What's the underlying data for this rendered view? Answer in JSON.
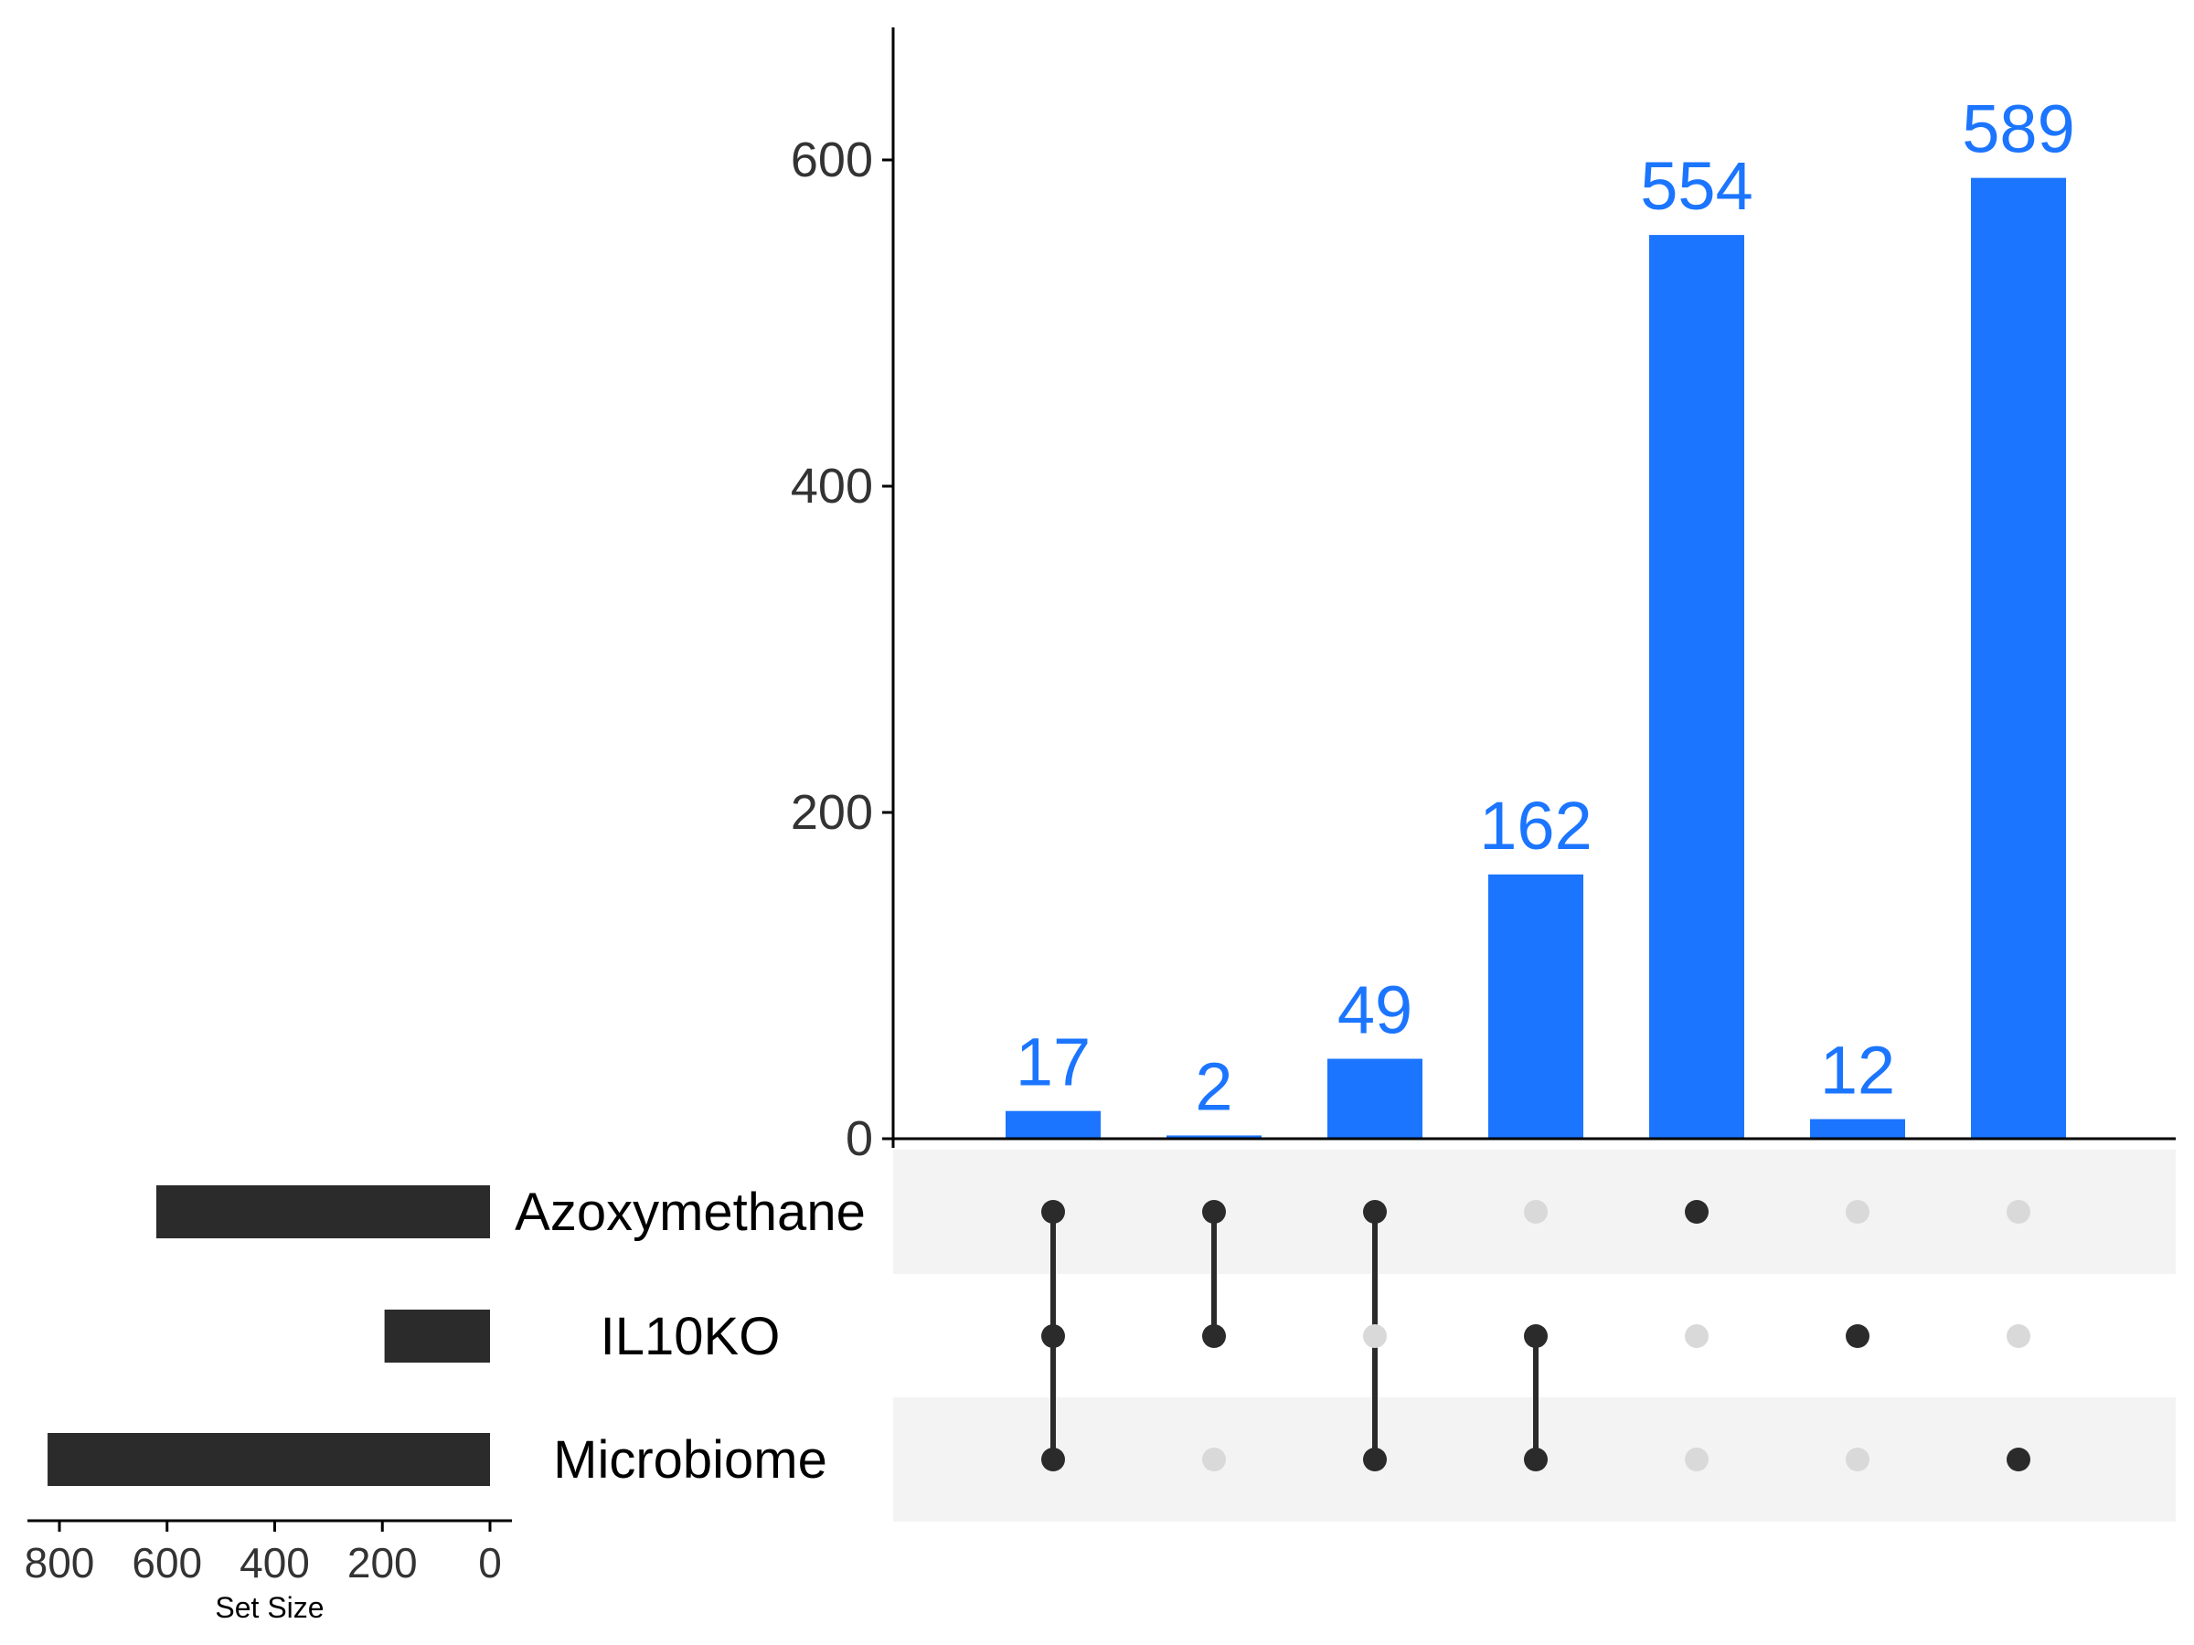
{
  "chart_data": {
    "type": "upset",
    "colors": {
      "bar": "#1b75ff",
      "dark": "#2b2b2b",
      "inactive": "#d9d9d9",
      "stripe": "#f3f3f3"
    },
    "sets": [
      "Azoxymethane",
      "IL10KO",
      "Microbiome"
    ],
    "set_sizes": [
      {
        "name": "Azoxymethane",
        "size": 620
      },
      {
        "name": "IL10KO",
        "size": 196
      },
      {
        "name": "Microbiome",
        "size": 822
      }
    ],
    "set_size_axis": {
      "title": "Set Size",
      "ticks": [
        800,
        600,
        400,
        200,
        0
      ],
      "lim": [
        0,
        850
      ],
      "reversed": true
    },
    "intersections": [
      {
        "sets": [
          "Azoxymethane",
          "IL10KO",
          "Microbiome"
        ],
        "value": 17,
        "label": "17"
      },
      {
        "sets": [
          "Azoxymethane",
          "IL10KO"
        ],
        "value": 2,
        "label": "2"
      },
      {
        "sets": [
          "Azoxymethane",
          "Microbiome"
        ],
        "value": 49,
        "label": "49"
      },
      {
        "sets": [
          "IL10KO",
          "Microbiome"
        ],
        "value": 162,
        "label": "162"
      },
      {
        "sets": [
          "Azoxymethane"
        ],
        "value": 554,
        "label": "554"
      },
      {
        "sets": [
          "IL10KO"
        ],
        "value": 12,
        "label": "12"
      },
      {
        "sets": [
          "Microbiome"
        ],
        "value": 589,
        "label": "589"
      }
    ],
    "intersection_axis": {
      "ticks": [
        0,
        200,
        400,
        600
      ],
      "tick_labels": [
        "0",
        "200",
        "400",
        "600"
      ],
      "lim": [
        0,
        680
      ]
    }
  }
}
